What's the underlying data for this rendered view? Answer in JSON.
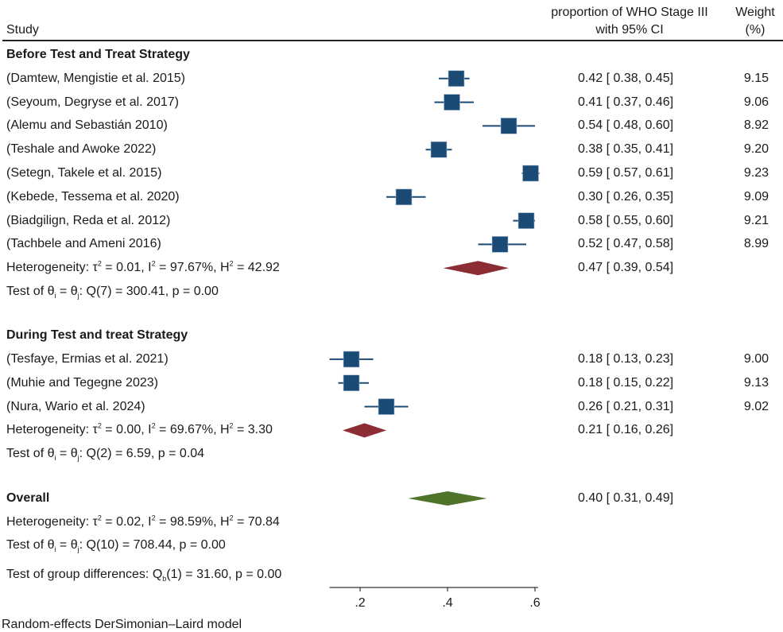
{
  "chart_data": {
    "type": "forest",
    "title": "",
    "xlabel": "",
    "model_note": "Random-effects DerSimonian–Laird model",
    "x_ticks": [
      0.2,
      0.4,
      0.6
    ],
    "x_tick_labels": [
      ".2",
      ".4",
      ".6"
    ],
    "xlim": [
      0.13,
      0.607
    ],
    "columns": {
      "study": "Study",
      "effect_line1": "proportion of WHO Stage III",
      "effect_line2": "with 95% CI",
      "weight_line1": "Weight",
      "weight_line2": "(%)"
    },
    "colors": {
      "marker": "#1b4a74",
      "subgroup_diamond": "#8c2c35",
      "overall_diamond": "#4f7429"
    },
    "groups": [
      {
        "name": "Before Test and Treat Strategy",
        "studies": [
          {
            "label": "(Damtew, Mengistie et al. 2015)",
            "est": 0.42,
            "lo": 0.38,
            "hi": 0.45,
            "text": "0.42 [ 0.38,  0.45]",
            "weight": "9.15"
          },
          {
            "label": "(Seyoum, Degryse et al. 2017)",
            "est": 0.41,
            "lo": 0.37,
            "hi": 0.46,
            "text": "0.41 [ 0.37,  0.46]",
            "weight": "9.06"
          },
          {
            "label": "(Alemu and Sebastián 2010)",
            "est": 0.54,
            "lo": 0.48,
            "hi": 0.6,
            "text": "0.54 [ 0.48,  0.60]",
            "weight": "8.92"
          },
          {
            "label": "(Teshale and Awoke 2022)",
            "est": 0.38,
            "lo": 0.35,
            "hi": 0.41,
            "text": "0.38 [ 0.35,  0.41]",
            "weight": "9.20"
          },
          {
            "label": "(Setegn, Takele et al. 2015)",
            "est": 0.59,
            "lo": 0.57,
            "hi": 0.61,
            "text": "0.59 [ 0.57,  0.61]",
            "weight": "9.23"
          },
          {
            "label": "(Kebede, Tessema et al. 2020)",
            "est": 0.3,
            "lo": 0.26,
            "hi": 0.35,
            "text": "0.30 [ 0.26,  0.35]",
            "weight": "9.09"
          },
          {
            "label": "(Biadgilign, Reda et al. 2012)",
            "est": 0.58,
            "lo": 0.55,
            "hi": 0.6,
            "text": "0.58 [ 0.55,  0.60]",
            "weight": "9.21"
          },
          {
            "label": "(Tachbele and Ameni 2016)",
            "est": 0.52,
            "lo": 0.47,
            "hi": 0.58,
            "text": "0.52 [ 0.47,  0.58]",
            "weight": "8.99"
          }
        ],
        "pooled": {
          "est": 0.47,
          "lo": 0.39,
          "hi": 0.54,
          "text": "0.47 [ 0.39,  0.54]"
        },
        "heterogeneity": {
          "prefix": "Heterogeneity: τ",
          "tau2": "0.01",
          "I2": "97.67%",
          "H2": "42.92"
        },
        "test": {
          "Q_df": "7",
          "Q": "300.41",
          "p": "0.00"
        }
      },
      {
        "name": "During Test and treat Strategy",
        "studies": [
          {
            "label": "(Tesfaye, Ermias et al. 2021)",
            "est": 0.18,
            "lo": 0.13,
            "hi": 0.23,
            "text": "0.18 [ 0.13,  0.23]",
            "weight": "9.00"
          },
          {
            "label": "(Muhie and Tegegne 2023)",
            "est": 0.18,
            "lo": 0.15,
            "hi": 0.22,
            "text": "0.18 [ 0.15,  0.22]",
            "weight": "9.13"
          },
          {
            "label": "(Nura, Wario et al. 2024)",
            "est": 0.26,
            "lo": 0.21,
            "hi": 0.31,
            "text": "0.26 [ 0.21,  0.31]",
            "weight": "9.02"
          }
        ],
        "pooled": {
          "est": 0.21,
          "lo": 0.16,
          "hi": 0.26,
          "text": "0.21 [ 0.16,  0.26]"
        },
        "heterogeneity": {
          "tau2": "0.00",
          "I2": "69.67%",
          "H2": "3.30"
        },
        "test": {
          "Q_df": "2",
          "Q": "6.59",
          "p": "0.04"
        }
      }
    ],
    "overall": {
      "label": "Overall",
      "est": 0.4,
      "lo": 0.31,
      "hi": 0.49,
      "text": "0.40 [ 0.31,  0.49]",
      "heterogeneity": {
        "tau2": "0.02",
        "I2": "98.59%",
        "H2": "70.84"
      },
      "test": {
        "Q_df": "10",
        "Q": "708.44",
        "p": "0.00"
      },
      "group_diff": {
        "df": "1",
        "Q": "31.60",
        "p": "0.00"
      }
    }
  }
}
